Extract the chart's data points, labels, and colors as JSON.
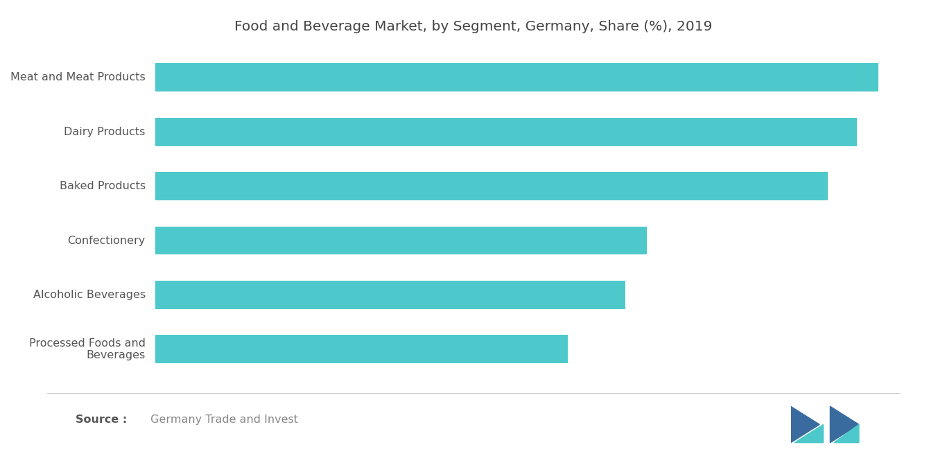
{
  "title": "Food and Beverage Market, by Segment, Germany, Share (%), 2019",
  "categories": [
    "Meat and Meat Products",
    "Dairy Products",
    "Baked Products",
    "Confectionery",
    "Alcoholic Beverages",
    "Processed Foods and\nBeverages"
  ],
  "values": [
    100,
    97,
    93,
    68,
    65,
    57
  ],
  "bar_color": "#4ec9cb",
  "background_color": "#ffffff",
  "title_color": "#444444",
  "label_color": "#555555",
  "source_bold": "Source :",
  "source_rest": " Germany Trade and Invest",
  "title_fontsize": 14.5,
  "label_fontsize": 11.5,
  "source_fontsize": 11.5,
  "xlim": [
    0,
    108
  ],
  "bar_height": 0.52,
  "logo_color_dark": "#3a6b9e",
  "logo_color_teal": "#4ec9cb"
}
